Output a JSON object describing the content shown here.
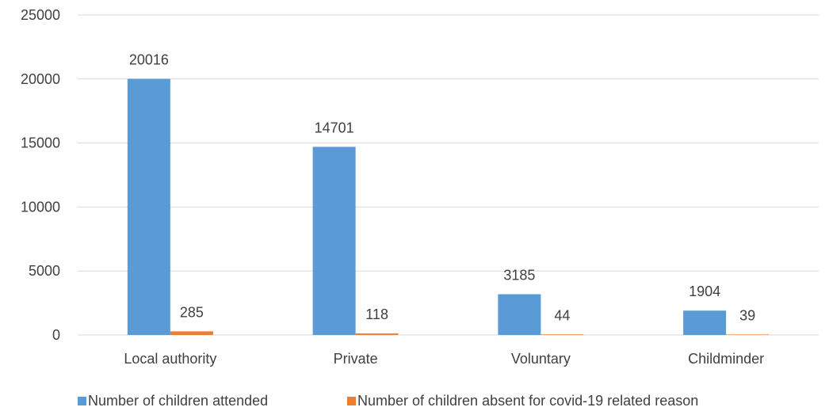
{
  "chart_data": {
    "type": "bar",
    "categories": [
      "Local authority",
      "Private",
      "Voluntary",
      "Childminder"
    ],
    "series": [
      {
        "name": "Number of children attended",
        "values": [
          20016,
          14701,
          3185,
          1904
        ],
        "color": "#5b9bd5"
      },
      {
        "name": "Number of children absent for covid-19 related reason",
        "values": [
          285,
          118,
          44,
          39
        ],
        "color": "#ed7d31"
      }
    ],
    "ylim": [
      0,
      25000
    ],
    "yticks": [
      0,
      5000,
      10000,
      15000,
      20000,
      25000
    ],
    "grid": true,
    "legend_position": "bottom",
    "title": "",
    "xlabel": "",
    "ylabel": ""
  }
}
